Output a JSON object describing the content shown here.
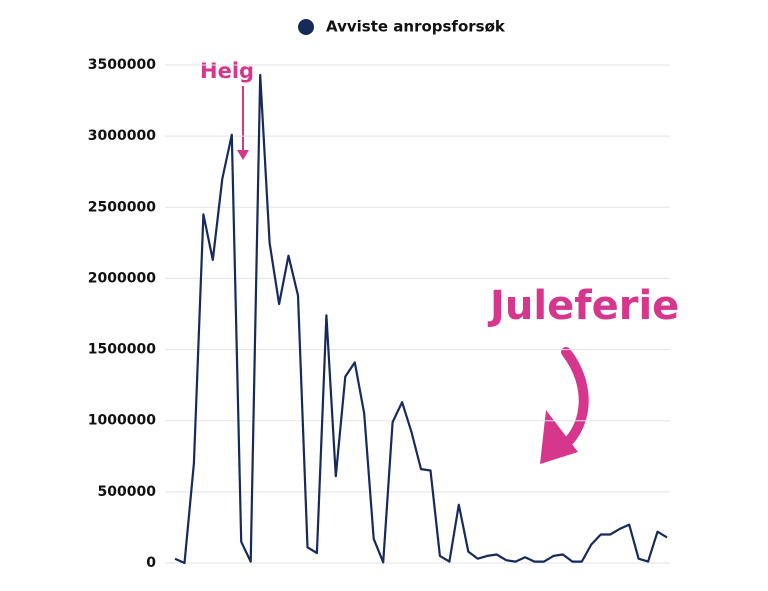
{
  "chart_data": {
    "type": "line",
    "categories": [
      null,
      null,
      null,
      null,
      null,
      null,
      null,
      null,
      null,
      null,
      null,
      null,
      null,
      null,
      null,
      null,
      null,
      null,
      null,
      null,
      null,
      null,
      null,
      null,
      null,
      null,
      null,
      null,
      null,
      null,
      null,
      null,
      null,
      null,
      null,
      null,
      null,
      null,
      null,
      null,
      null,
      null,
      null,
      null,
      null,
      null,
      null,
      null,
      null,
      null,
      null,
      null,
      null
    ],
    "series": [
      {
        "name": "Avviste anropsforsøk",
        "color": "#172a5c",
        "values": [
          30000,
          0,
          700000,
          2450000,
          2130000,
          2700000,
          3010000,
          150000,
          10000,
          3430000,
          2250000,
          1820000,
          2160000,
          1880000,
          110000,
          70000,
          1740000,
          610000,
          1310000,
          1410000,
          1050000,
          170000,
          5000,
          990000,
          1130000,
          920000,
          660000,
          650000,
          50000,
          10000,
          410000,
          80000,
          30000,
          50000,
          60000,
          20000,
          10000,
          40000,
          10000,
          10000,
          50000,
          60000,
          10000,
          10000,
          130000,
          200000,
          200000,
          240000,
          270000,
          30000,
          10000,
          220000,
          180000
        ]
      }
    ],
    "ylim": [
      0,
      3500000
    ],
    "yticks": [
      0,
      500000,
      1000000,
      1500000,
      2000000,
      2500000,
      3000000,
      3500000
    ],
    "grid": true,
    "legend": "top",
    "annotations": [
      "Helg",
      "Juleferie"
    ],
    "annotation_color": "#d6378c"
  }
}
